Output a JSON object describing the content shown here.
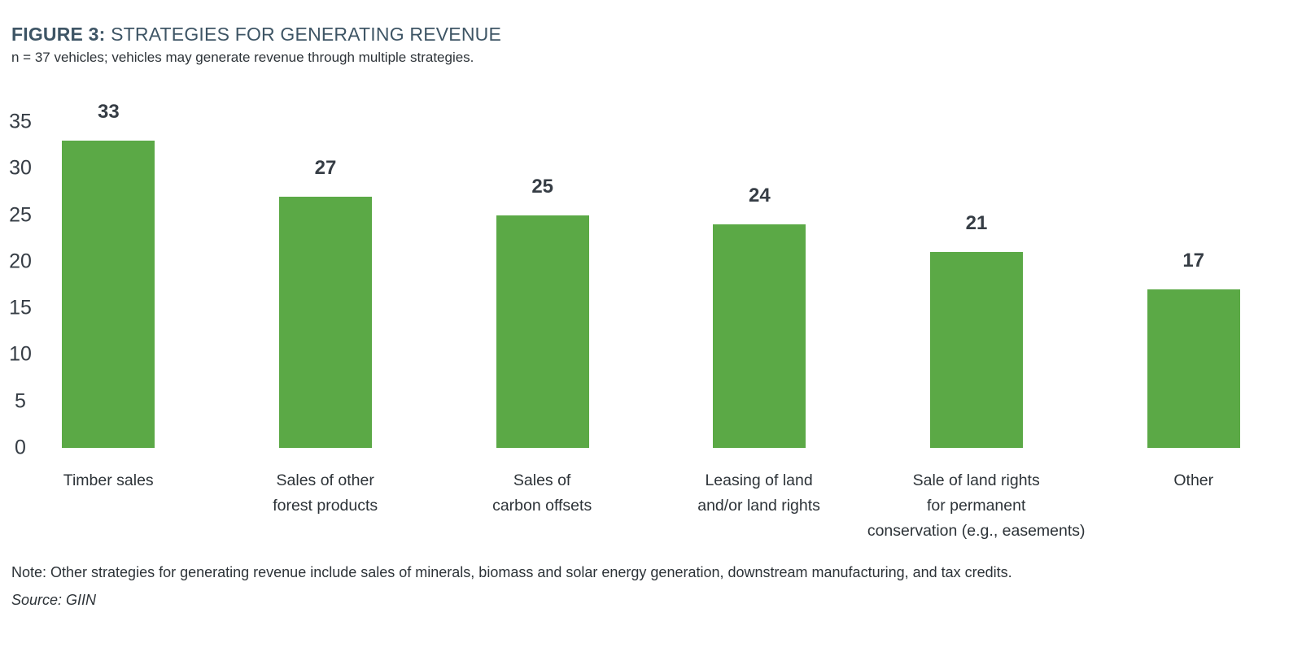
{
  "figure": {
    "label": "FIGURE 3:",
    "title_rest": " STRATEGIES FOR GENERATING REVENUE",
    "subtitle": "n = 37 vehicles; vehicles may generate revenue through multiple strategies.",
    "note": "Note: Other strategies for generating revenue include sales of minerals, biomass and solar energy generation, downstream manufacturing, and tax credits.",
    "source": "Source: GIIN"
  },
  "colors": {
    "bar_green": "#5BA946",
    "title_slate": "#3E5565",
    "text_dark": "#2D3338",
    "number_dark": "#363D45"
  },
  "chart_data": {
    "type": "bar",
    "title": "STRATEGIES FOR GENERATING REVENUE",
    "subtitle": "n = 37 vehicles; vehicles may generate revenue through multiple strategies.",
    "categories": [
      "Timber sales",
      "Sales of other\nforest products",
      "Sales of\ncarbon offsets",
      "Leasing of land\nand/or land rights",
      "Sale of land rights\nfor permanent\nconservation (e.g., easements)",
      "Other"
    ],
    "values": [
      33,
      27,
      25,
      24,
      21,
      17
    ],
    "value_labels_shown": true,
    "xlabel": "",
    "ylabel": "",
    "ylim": [
      0,
      35
    ],
    "yticks": [
      0,
      5,
      10,
      15,
      20,
      25,
      30,
      35
    ],
    "grid": false,
    "legend": false,
    "bar_color": "#5BA946"
  }
}
